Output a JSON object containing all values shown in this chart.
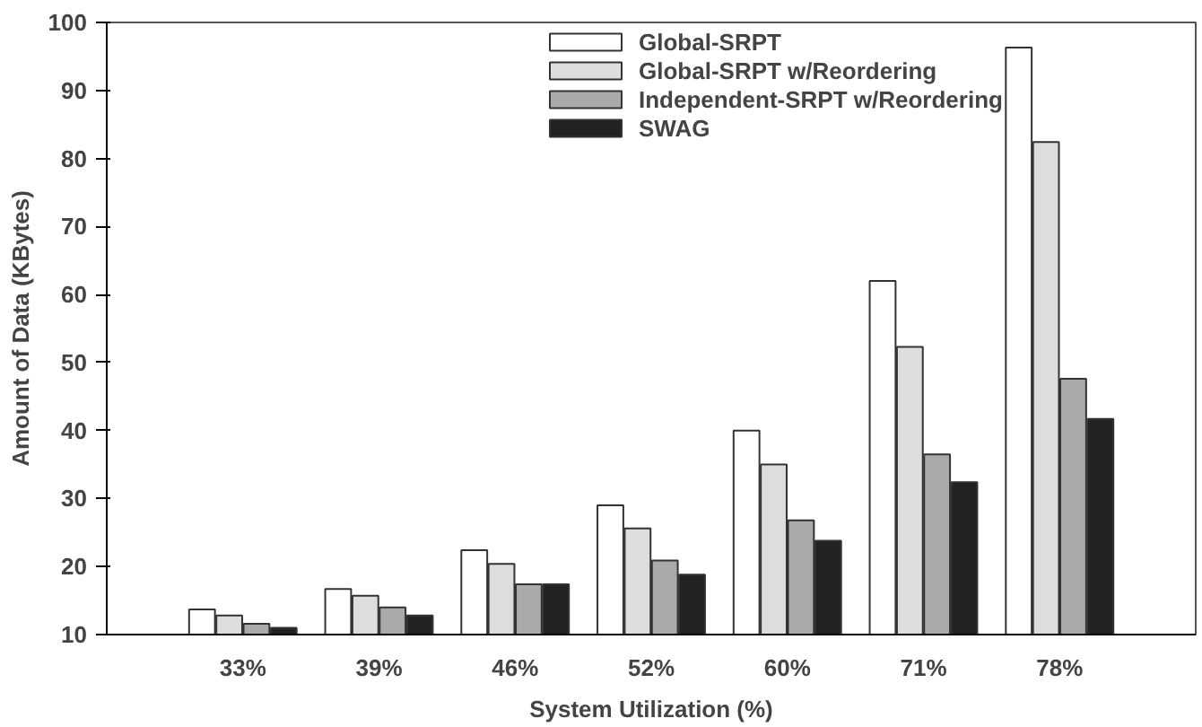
{
  "chart_data": {
    "type": "bar",
    "xlabel": "System Utilization (%)",
    "ylabel": "Amount of Data (KBytes)",
    "categories": [
      "33%",
      "39%",
      "46%",
      "52%",
      "60%",
      "71%",
      "78%"
    ],
    "series": [
      {
        "name": "Global-SRPT",
        "color": "#ffffff",
        "values": [
          13.7,
          16.7,
          22.4,
          29,
          40,
          62,
          96.3
        ]
      },
      {
        "name": "Global-SRPT w/Reordering",
        "color": "#dddddd",
        "values": [
          12.8,
          15.7,
          20.4,
          25.6,
          35,
          52.3,
          82.4
        ]
      },
      {
        "name": "Independent-SRPT w/Reordering",
        "color": "#aaaaaa",
        "values": [
          11.6,
          14,
          17.4,
          20.9,
          26.8,
          36.5,
          47.6
        ]
      },
      {
        "name": "SWAG",
        "color": "#222222",
        "values": [
          11,
          12.8,
          17.4,
          18.8,
          23.8,
          32.4,
          41.7
        ]
      }
    ],
    "ylim": [
      10,
      100
    ],
    "yticks": [
      10,
      20,
      30,
      40,
      50,
      60,
      70,
      80,
      90,
      100
    ],
    "grid": false,
    "legend": "top right"
  }
}
